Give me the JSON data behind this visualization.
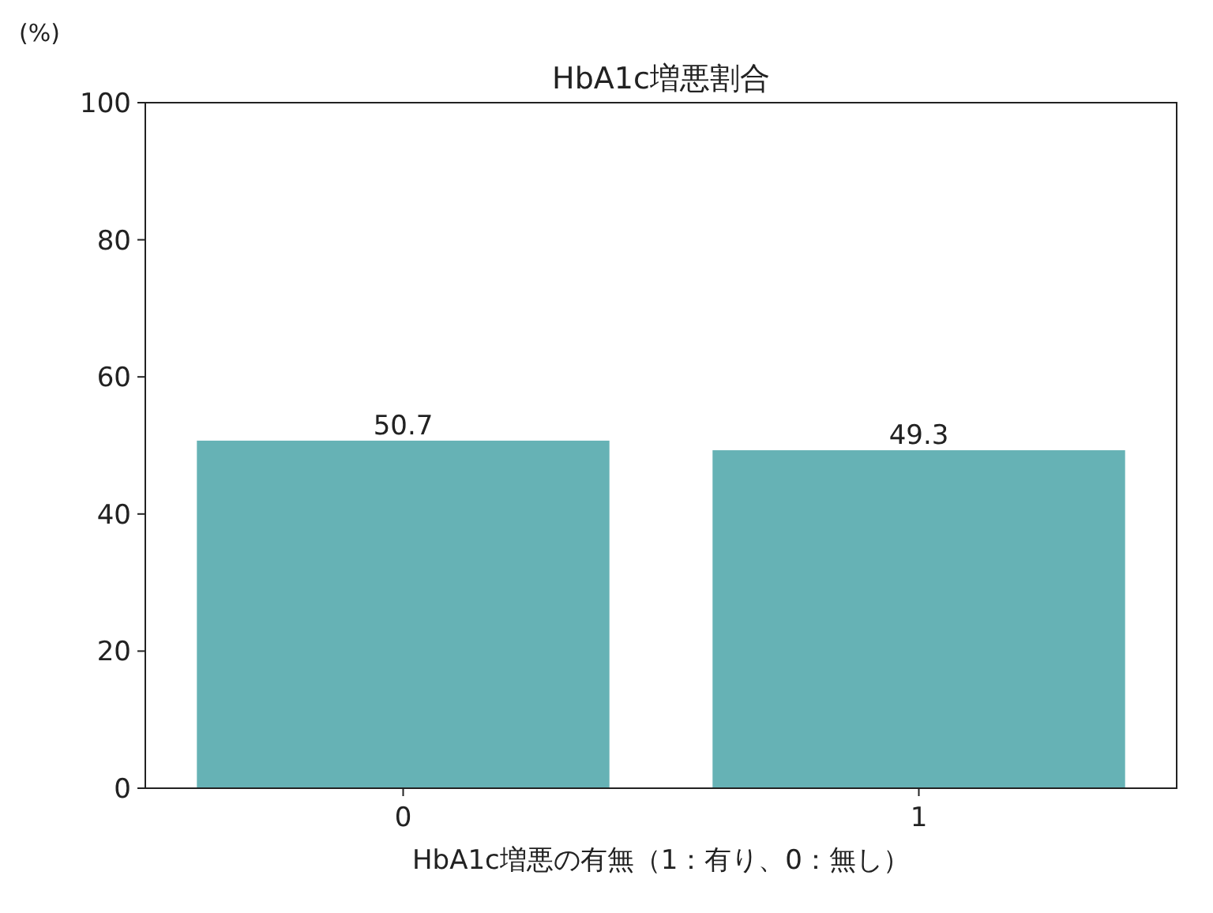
{
  "chart_data": {
    "type": "bar",
    "title": "HbA1c増悪割合",
    "xlabel": "HbA1c増悪の有無（1：有り、0：無し）",
    "ylabel": "(%)",
    "categories": [
      "0",
      "1"
    ],
    "values": [
      50.7,
      49.3
    ],
    "color": "#66b2b5",
    "ylim": [
      0,
      100
    ],
    "yticks": [
      0,
      20,
      40,
      60,
      80,
      100
    ],
    "data_labels": true,
    "grid": false
  }
}
